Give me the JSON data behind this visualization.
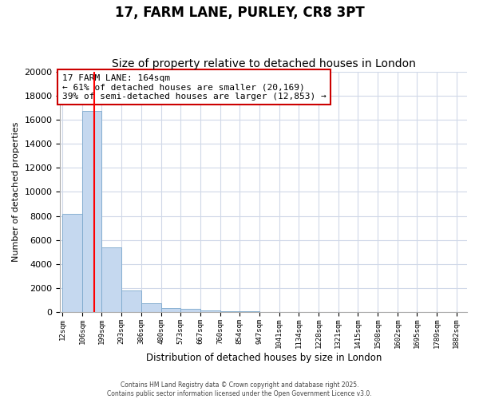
{
  "title": "17, FARM LANE, PURLEY, CR8 3PT",
  "subtitle": "Size of property relative to detached houses in London",
  "xlabel": "Distribution of detached houses by size in London",
  "ylabel": "Number of detached properties",
  "bar_edges": [
    12,
    106,
    199,
    293,
    386,
    480,
    573,
    667,
    760,
    854,
    947,
    1041,
    1134,
    1228,
    1321,
    1415,
    1508,
    1602,
    1695,
    1789,
    1882
  ],
  "bar_heights": [
    8200,
    16700,
    5400,
    1800,
    750,
    350,
    250,
    150,
    100,
    50,
    30,
    20,
    15,
    10,
    8,
    6,
    5,
    4,
    3,
    2
  ],
  "bar_color": "#c5d8ef",
  "bar_edge_color": "#7ba8cc",
  "red_line_x": 164,
  "annotation_text": "17 FARM LANE: 164sqm\n← 61% of detached houses are smaller (20,169)\n39% of semi-detached houses are larger (12,853) →",
  "annotation_box_color": "#ffffff",
  "annotation_border_color": "#cc0000",
  "ylim": [
    0,
    20000
  ],
  "yticks": [
    0,
    2000,
    4000,
    6000,
    8000,
    10000,
    12000,
    14000,
    16000,
    18000,
    20000
  ],
  "bg_color": "#ffffff",
  "grid_color": "#d0d8e8",
  "footer_line1": "Contains HM Land Registry data © Crown copyright and database right 2025.",
  "footer_line2": "Contains public sector information licensed under the Open Government Licence v3.0.",
  "title_fontsize": 12,
  "subtitle_fontsize": 10,
  "annot_fontsize": 8
}
